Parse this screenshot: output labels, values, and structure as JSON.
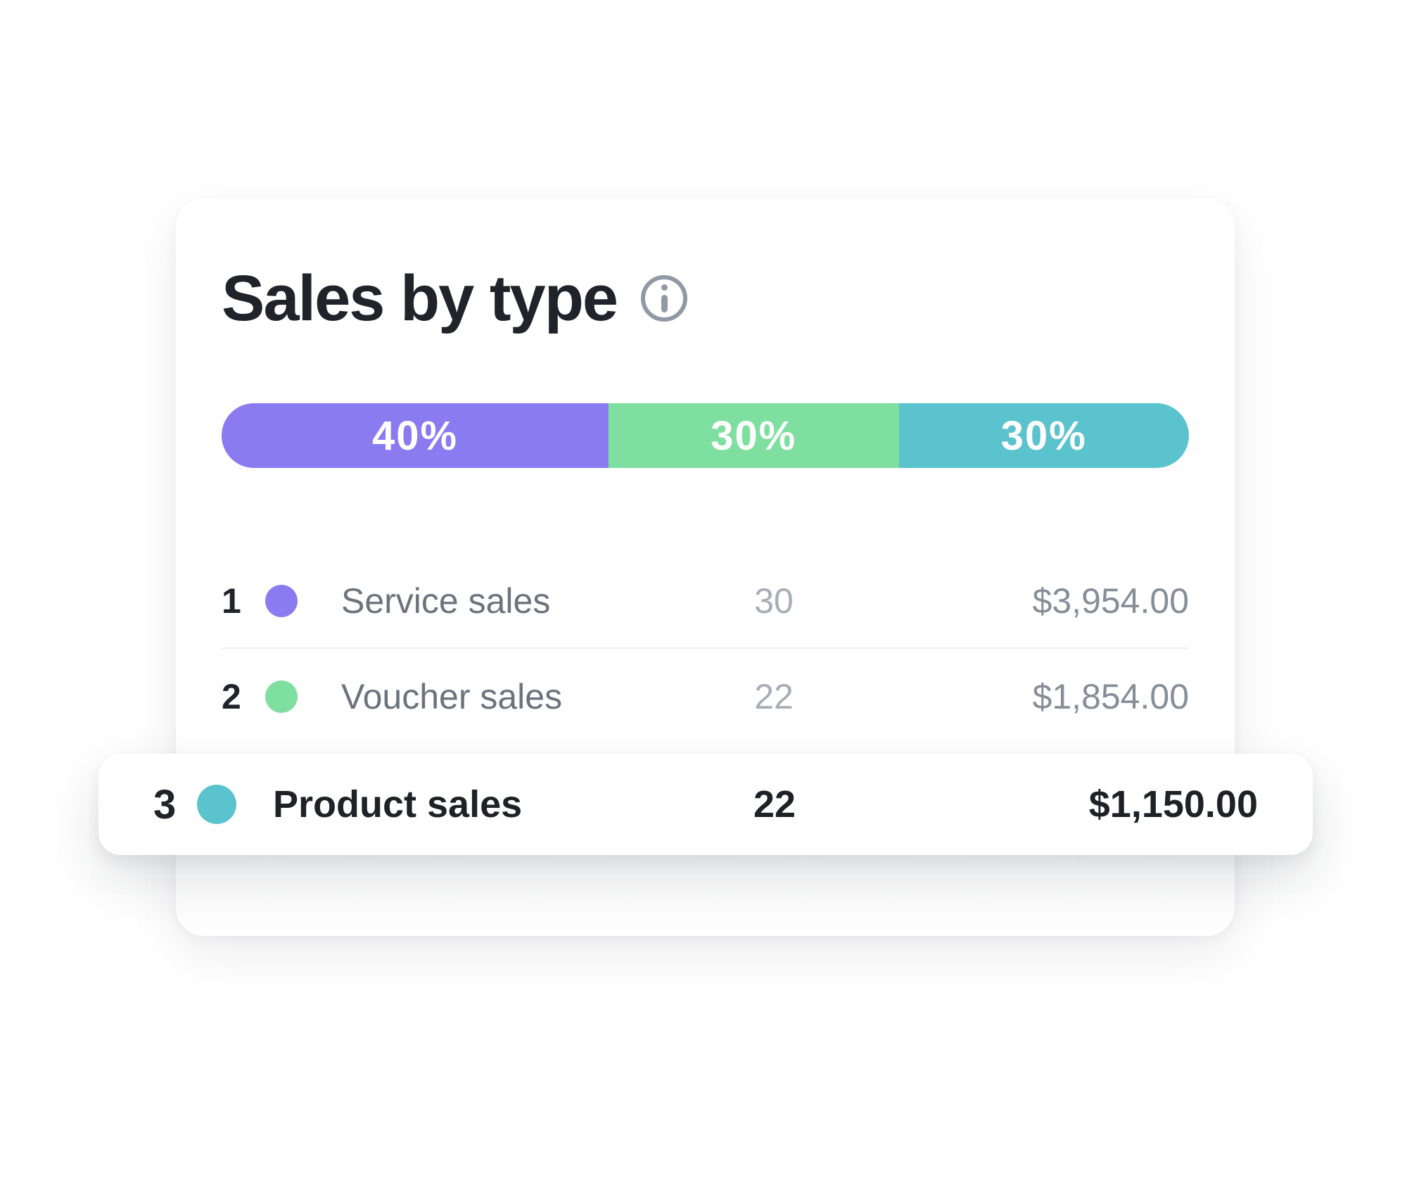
{
  "card": {
    "title": "Sales by type",
    "info_icon": "info-icon"
  },
  "chart_data": {
    "type": "bar",
    "variant": "horizontal-stacked-percentage",
    "title": "Sales by type",
    "unit": "percent",
    "legend_position": "table-below",
    "segments": [
      {
        "label": "40%",
        "value": 40,
        "name": "Service sales",
        "color": "#8b7bf1"
      },
      {
        "label": "30%",
        "value": 30,
        "name": "Voucher sales",
        "color": "#7edfa0"
      },
      {
        "label": "30%",
        "value": 30,
        "name": "Product sales",
        "color": "#5ac3ce"
      }
    ],
    "rows": [
      {
        "rank": "1",
        "label": "Service sales",
        "count": "30",
        "amount": "$3,954.00",
        "color": "#8b7bf1",
        "highlighted": false
      },
      {
        "rank": "2",
        "label": "Voucher sales",
        "count": "22",
        "amount": "$1,854.00",
        "color": "#7edfa0",
        "highlighted": false
      },
      {
        "rank": "3",
        "label": "Product sales",
        "count": "22",
        "amount": "$1,150.00",
        "color": "#5ac3ce",
        "highlighted": true
      }
    ]
  },
  "colors": {
    "accent_purple": "#8b7bf1",
    "accent_green": "#7edfa0",
    "accent_teal": "#5ac3ce",
    "text_dark": "#20242a",
    "text_gray": "#6b737d",
    "text_light_gray": "#a7aeb7",
    "text_amount_gray": "#868e98",
    "icon_gray": "#909aa4",
    "divider": "#edeff2",
    "card_bg": "#ffffff"
  }
}
